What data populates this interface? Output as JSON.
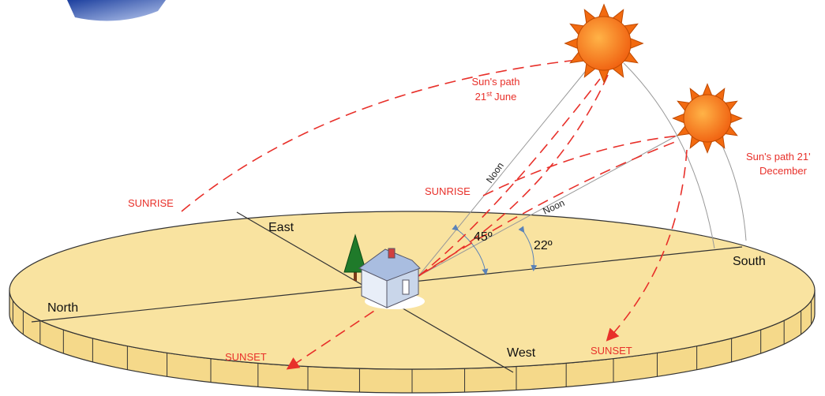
{
  "labels": {
    "sunrise_left": "SUNRISE",
    "sunrise_right": "SUNRISE",
    "sunset_left": "SUNSET",
    "sunset_right": "SUNSET",
    "noon_high": "Noon",
    "noon_low": "Noon",
    "east": "East",
    "north": "North",
    "west": "West",
    "south": "South",
    "angle_high": "45º",
    "angle_low": "22º"
  },
  "june_path": {
    "line1": "Sun's path",
    "day": "21",
    "suffix": "st",
    "month": "June"
  },
  "december_path": {
    "line1": "Sun's path 21'",
    "month": "December"
  }
}
